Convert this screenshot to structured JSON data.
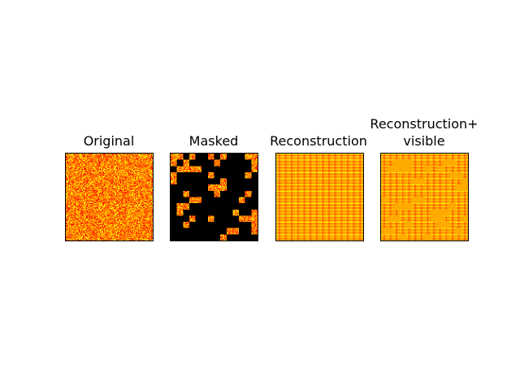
{
  "figure": {
    "panels": [
      {
        "id": "original",
        "title": "Original",
        "colormap": "hot"
      },
      {
        "id": "masked",
        "title": "Masked",
        "colormap": "hot"
      },
      {
        "id": "reconstruction",
        "title": "Reconstruction",
        "colormap": "hot"
      },
      {
        "id": "reconstruction-visible",
        "title": "Reconstruction+\nvisible",
        "colormap": "hot"
      }
    ],
    "patch_grid": 14,
    "mask_visible_patches_masked_panel": [
      [
        0,
        0
      ],
      [
        0,
        1
      ],
      [
        0,
        3
      ],
      [
        0,
        6
      ],
      [
        0,
        8
      ],
      [
        0,
        12
      ],
      [
        0,
        13
      ],
      [
        1,
        0
      ],
      [
        1,
        2
      ],
      [
        1,
        7
      ],
      [
        1,
        13
      ],
      [
        2,
        1
      ],
      [
        2,
        2
      ],
      [
        2,
        3
      ],
      [
        2,
        4
      ],
      [
        2,
        13
      ],
      [
        3,
        0
      ],
      [
        3,
        6
      ],
      [
        3,
        12
      ],
      [
        4,
        0
      ],
      [
        4,
        8
      ],
      [
        5,
        6
      ],
      [
        5,
        7
      ],
      [
        5,
        8
      ],
      [
        6,
        2
      ],
      [
        6,
        7
      ],
      [
        6,
        12
      ],
      [
        7,
        3
      ],
      [
        7,
        4
      ],
      [
        7,
        11
      ],
      [
        8,
        1
      ],
      [
        8,
        2
      ],
      [
        9,
        1
      ],
      [
        9,
        10
      ],
      [
        9,
        13
      ],
      [
        10,
        3
      ],
      [
        10,
        6
      ],
      [
        10,
        11
      ],
      [
        10,
        12
      ],
      [
        10,
        13
      ],
      [
        11,
        2
      ],
      [
        11,
        13
      ],
      [
        12,
        9
      ],
      [
        12,
        10
      ],
      [
        12,
        13
      ],
      [
        13,
        8
      ]
    ],
    "mask_visible_patches_recon_panel": [
      [
        1,
        2
      ],
      [
        1,
        3
      ],
      [
        1,
        4
      ],
      [
        1,
        10
      ],
      [
        1,
        11
      ],
      [
        2,
        1
      ],
      [
        2,
        2
      ],
      [
        2,
        3
      ],
      [
        2,
        4
      ],
      [
        2,
        7
      ],
      [
        2,
        9
      ],
      [
        3,
        11
      ],
      [
        3,
        12
      ],
      [
        4,
        5
      ],
      [
        4,
        6
      ],
      [
        4,
        13
      ],
      [
        5,
        12
      ],
      [
        5,
        13
      ],
      [
        7,
        0
      ],
      [
        7,
        5
      ],
      [
        7,
        6
      ],
      [
        8,
        2
      ],
      [
        8,
        3
      ],
      [
        8,
        4
      ],
      [
        8,
        11
      ],
      [
        9,
        8
      ],
      [
        9,
        9
      ],
      [
        9,
        10
      ],
      [
        10,
        1
      ],
      [
        10,
        2
      ],
      [
        10,
        8
      ],
      [
        10,
        9
      ],
      [
        10,
        13
      ],
      [
        11,
        4
      ],
      [
        11,
        9
      ],
      [
        11,
        10
      ],
      [
        12,
        0
      ],
      [
        12,
        1
      ],
      [
        12,
        12
      ],
      [
        13,
        3
      ],
      [
        13,
        7
      ]
    ]
  }
}
